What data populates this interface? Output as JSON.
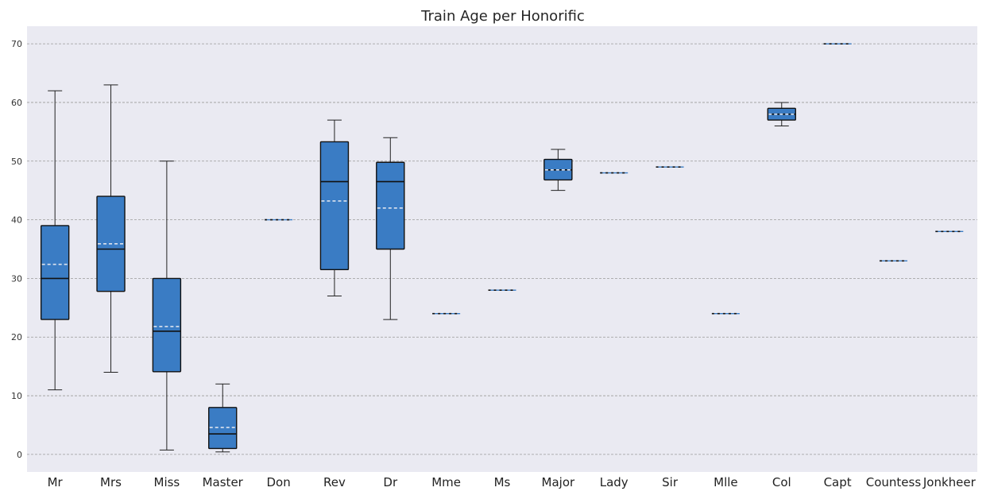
{
  "chart_data": {
    "type": "box",
    "title": "Train Age per Honorific",
    "xlabel": "",
    "ylabel": "",
    "ylim": [
      -3,
      73
    ],
    "yticks": [
      0,
      10,
      20,
      30,
      40,
      50,
      60,
      70
    ],
    "grid": true,
    "categories": [
      "Mr",
      "Mrs",
      "Miss",
      "Master",
      "Don",
      "Rev",
      "Dr",
      "Mme",
      "Ms",
      "Major",
      "Lady",
      "Sir",
      "Mlle",
      "Col",
      "Capt",
      "Countess",
      "Jonkheer"
    ],
    "boxes": [
      {
        "category": "Mr",
        "whisker_low": 11,
        "q1": 23,
        "median": 30,
        "mean": 32.4,
        "q3": 39,
        "whisker_high": 62
      },
      {
        "category": "Mrs",
        "whisker_low": 14,
        "q1": 27.8,
        "median": 35,
        "mean": 35.9,
        "q3": 44,
        "whisker_high": 63
      },
      {
        "category": "Miss",
        "whisker_low": 0.75,
        "q1": 14.1,
        "median": 21,
        "mean": 21.8,
        "q3": 30,
        "whisker_high": 50
      },
      {
        "category": "Master",
        "whisker_low": 0.42,
        "q1": 1,
        "median": 3.5,
        "mean": 4.6,
        "q3": 8,
        "whisker_high": 12
      },
      {
        "category": "Don",
        "whisker_low": 40,
        "q1": 40,
        "median": 40,
        "mean": 40,
        "q3": 40,
        "whisker_high": 40
      },
      {
        "category": "Rev",
        "whisker_low": 27,
        "q1": 31.5,
        "median": 46.5,
        "mean": 43.2,
        "q3": 53.3,
        "whisker_high": 57
      },
      {
        "category": "Dr",
        "whisker_low": 23,
        "q1": 35,
        "median": 46.5,
        "mean": 42,
        "q3": 49.8,
        "whisker_high": 54
      },
      {
        "category": "Mme",
        "whisker_low": 24,
        "q1": 24,
        "median": 24,
        "mean": 24,
        "q3": 24,
        "whisker_high": 24
      },
      {
        "category": "Ms",
        "whisker_low": 28,
        "q1": 28,
        "median": 28,
        "mean": 28,
        "q3": 28,
        "whisker_high": 28
      },
      {
        "category": "Major",
        "whisker_low": 45,
        "q1": 46.8,
        "median": 48.5,
        "mean": 48.5,
        "q3": 50.3,
        "whisker_high": 52
      },
      {
        "category": "Lady",
        "whisker_low": 48,
        "q1": 48,
        "median": 48,
        "mean": 48,
        "q3": 48,
        "whisker_high": 48
      },
      {
        "category": "Sir",
        "whisker_low": 49,
        "q1": 49,
        "median": 49,
        "mean": 49,
        "q3": 49,
        "whisker_high": 49
      },
      {
        "category": "Mlle",
        "whisker_low": 24,
        "q1": 24,
        "median": 24,
        "mean": 24,
        "q3": 24,
        "whisker_high": 24
      },
      {
        "category": "Col",
        "whisker_low": 56,
        "q1": 57,
        "median": 58,
        "mean": 58,
        "q3": 59,
        "whisker_high": 60
      },
      {
        "category": "Capt",
        "whisker_low": 70,
        "q1": 70,
        "median": 70,
        "mean": 70,
        "q3": 70,
        "whisker_high": 70
      },
      {
        "category": "Countess",
        "whisker_low": 33,
        "q1": 33,
        "median": 33,
        "mean": 33,
        "q3": 33,
        "whisker_high": 33
      },
      {
        "category": "Jonkheer",
        "whisker_low": 38,
        "q1": 38,
        "median": 38,
        "mean": 38,
        "q3": 38,
        "whisker_high": 38
      }
    ],
    "colors": {
      "background": "#eaeaf2",
      "box_fill": "#3a7cc4",
      "box_edge": "#111111",
      "median_line": "#111111",
      "mean_line": "#dde3ee",
      "grid": "#999999"
    }
  }
}
